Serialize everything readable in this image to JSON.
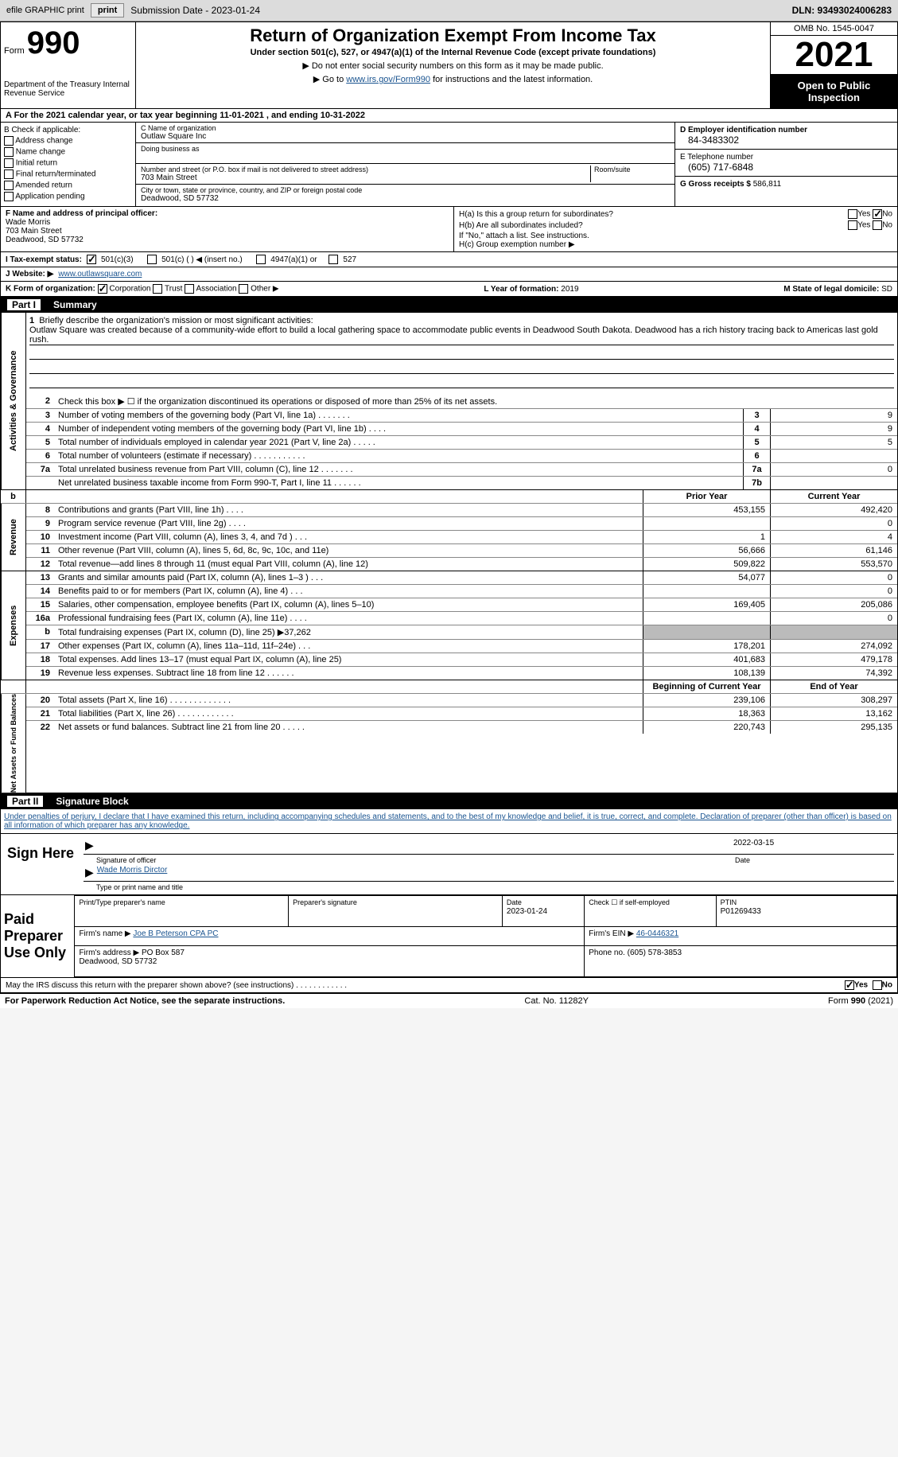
{
  "topbar": {
    "efile": "efile GRAPHIC print",
    "sub_label": "Submission Date - 2023-01-24",
    "dln": "DLN: 93493024006283"
  },
  "header": {
    "form_label": "Form",
    "form_num": "990",
    "dept": "Department of the Treasury Internal Revenue Service",
    "title": "Return of Organization Exempt From Income Tax",
    "subtitle": "Under section 501(c), 527, or 4947(a)(1) of the Internal Revenue Code (except private foundations)",
    "note1": "▶ Do not enter social security numbers on this form as it may be made public.",
    "note2_pre": "▶ Go to ",
    "note2_link": "www.irs.gov/Form990",
    "note2_post": " for instructions and the latest information.",
    "omb": "OMB No. 1545-0047",
    "year": "2021",
    "open": "Open to Public Inspection"
  },
  "row_a": "A For the 2021 calendar year, or tax year beginning 11-01-2021   , and ending 10-31-2022",
  "colB": {
    "label": "B Check if applicable:",
    "items": [
      "Address change",
      "Name change",
      "Initial return",
      "Final return/terminated",
      "Amended return",
      "Application pending"
    ]
  },
  "colC": {
    "name_lbl": "C Name of organization",
    "name": "Outlaw Square Inc",
    "dba_lbl": "Doing business as",
    "addr_lbl": "Number and street (or P.O. box if mail is not delivered to street address)",
    "room_lbl": "Room/suite",
    "addr": "703 Main Street",
    "city_lbl": "City or town, state or province, country, and ZIP or foreign postal code",
    "city": "Deadwood, SD  57732"
  },
  "colD": {
    "ein_lbl": "D Employer identification number",
    "ein": "84-3483302",
    "phone_lbl": "E Telephone number",
    "phone": "(605) 717-6848",
    "gross_lbl": "G Gross receipts $",
    "gross": "586,811"
  },
  "secF": {
    "lbl": "F  Name and address of principal officer:",
    "name": "Wade Morris",
    "addr1": "703 Main Street",
    "addr2": "Deadwood, SD  57732"
  },
  "secH": {
    "ha_lbl": "H(a)  Is this a group return for subordinates?",
    "hb_lbl": "H(b)  Are all subordinates included?",
    "hb_note": "If \"No,\" attach a list. See instructions.",
    "hc_lbl": "H(c)  Group exemption number ▶",
    "yes": "Yes",
    "no": "No"
  },
  "secI": {
    "lbl": "I   Tax-exempt status:",
    "o1": "501(c)(3)",
    "o2": "501(c) (   ) ◀ (insert no.)",
    "o3": "4947(a)(1) or",
    "o4": "527"
  },
  "secJ": {
    "lbl": "J   Website: ▶",
    "val": "www.outlawsquare.com"
  },
  "secK": {
    "lbl": "K Form of organization:",
    "o1": "Corporation",
    "o2": "Trust",
    "o3": "Association",
    "o4": "Other ▶"
  },
  "secL": {
    "lbl": "L Year of formation:",
    "val": "2019"
  },
  "secM": {
    "lbl": "M State of legal domicile:",
    "val": "SD"
  },
  "part1": {
    "label": "Part I",
    "title": "Summary"
  },
  "mission": {
    "num": "1",
    "lbl": "Briefly describe the organization's mission or most significant activities:",
    "text": "Outlaw Square was created because of a community-wide effort to build a local gathering space to accommodate public events in Deadwood South Dakota. Deadwood has a rich history tracing back to Americas last gold rush."
  },
  "line2": "Check this box ▶ ☐ if the organization discontinued its operations or disposed of more than 25% of its net assets.",
  "sidelabels": {
    "act": "Activities & Governance",
    "rev": "Revenue",
    "exp": "Expenses",
    "net": "Net Assets or Fund Balances"
  },
  "govrows": [
    {
      "n": "3",
      "d": "Number of voting members of the governing body (Part VI, line 1a)   .    .    .    .    .    .    .",
      "b": "3",
      "v": "9"
    },
    {
      "n": "4",
      "d": "Number of independent voting members of the governing body (Part VI, line 1b)  .    .    .    .",
      "b": "4",
      "v": "9"
    },
    {
      "n": "5",
      "d": "Total number of individuals employed in calendar year 2021 (Part V, line 2a)  .    .    .    .    .",
      "b": "5",
      "v": "5"
    },
    {
      "n": "6",
      "d": "Total number of volunteers (estimate if necessary)    .    .    .    .    .    .    .    .    .    .    .",
      "b": "6",
      "v": ""
    },
    {
      "n": "7a",
      "d": "Total unrelated business revenue from Part VIII, column (C), line 12   .    .    .    .    .    .    .",
      "b": "7a",
      "v": "0"
    },
    {
      "n": "",
      "d": "Net unrelated business taxable income from Form 990-T, Part I, line 11  .    .    .    .    .    .",
      "b": "7b",
      "v": ""
    }
  ],
  "colheads": {
    "prior": "Prior Year",
    "curr": "Current Year",
    "beg": "Beginning of Current Year",
    "end": "End of Year"
  },
  "revrows": [
    {
      "n": "8",
      "d": "Contributions and grants (Part VIII, line 1h)  .    .    .    .",
      "p": "453,155",
      "c": "492,420"
    },
    {
      "n": "9",
      "d": "Program service revenue (Part VIII, line 2g)  .    .    .    .",
      "p": "",
      "c": "0"
    },
    {
      "n": "10",
      "d": "Investment income (Part VIII, column (A), lines 3, 4, and 7d )    .    .    .",
      "p": "1",
      "c": "4"
    },
    {
      "n": "11",
      "d": "Other revenue (Part VIII, column (A), lines 5, 6d, 8c, 9c, 10c, and 11e)",
      "p": "56,666",
      "c": "61,146"
    },
    {
      "n": "12",
      "d": "Total revenue—add lines 8 through 11 (must equal Part VIII, column (A), line 12)",
      "p": "509,822",
      "c": "553,570"
    }
  ],
  "exprows": [
    {
      "n": "13",
      "d": "Grants and similar amounts paid (Part IX, column (A), lines 1–3 )   .    .    .",
      "p": "54,077",
      "c": "0"
    },
    {
      "n": "14",
      "d": "Benefits paid to or for members (Part IX, column (A), line 4)  .    .    .",
      "p": "",
      "c": "0"
    },
    {
      "n": "15",
      "d": "Salaries, other compensation, employee benefits (Part IX, column (A), lines 5–10)",
      "p": "169,405",
      "c": "205,086"
    },
    {
      "n": "16a",
      "d": "Professional fundraising fees (Part IX, column (A), line 11e)    .    .    .    .",
      "p": "",
      "c": "0"
    },
    {
      "n": "b",
      "d": "Total fundraising expenses (Part IX, column (D), line 25) ▶37,262",
      "p": "shade",
      "c": "shade"
    },
    {
      "n": "17",
      "d": "Other expenses (Part IX, column (A), lines 11a–11d, 11f–24e)    .    .    .",
      "p": "178,201",
      "c": "274,092"
    },
    {
      "n": "18",
      "d": "Total expenses. Add lines 13–17 (must equal Part IX, column (A), line 25)",
      "p": "401,683",
      "c": "479,178"
    },
    {
      "n": "19",
      "d": "Revenue less expenses. Subtract line 18 from line 12  .    .    .    .    .    .",
      "p": "108,139",
      "c": "74,392"
    }
  ],
  "netrows": [
    {
      "n": "20",
      "d": "Total assets (Part X, line 16)  .    .    .    .    .    .    .    .    .    .    .    .    .",
      "p": "239,106",
      "c": "308,297"
    },
    {
      "n": "21",
      "d": "Total liabilities (Part X, line 26)   .    .    .    .    .    .    .    .    .    .    .    .",
      "p": "18,363",
      "c": "13,162"
    },
    {
      "n": "22",
      "d": "Net assets or fund balances. Subtract line 21 from line 20  .    .    .    .    .",
      "p": "220,743",
      "c": "295,135"
    }
  ],
  "part2": {
    "label": "Part II",
    "title": "Signature Block"
  },
  "penalty": "Under penalties of perjury, I declare that I have examined this return, including accompanying schedules and statements, and to the best of my knowledge and belief, it is true, correct, and complete. Declaration of preparer (other than officer) is based on all information of which preparer has any knowledge.",
  "sign": {
    "lbl": "Sign Here",
    "sig_lbl": "Signature of officer",
    "date": "2022-03-15",
    "date_lbl": "Date",
    "name": "Wade Morris Dirctor",
    "name_lbl": "Type or print name and title"
  },
  "prep": {
    "lbl": "Paid Preparer Use Only",
    "print_lbl": "Print/Type preparer's name",
    "sig_lbl": "Preparer's signature",
    "date_lbl": "Date",
    "date": "2023-01-24",
    "check_lbl": "Check ☐ if self-employed",
    "ptin_lbl": "PTIN",
    "ptin": "P01269433",
    "firm_lbl": "Firm's name    ▶",
    "firm": "Joe B Peterson CPA PC",
    "ein_lbl": "Firm's EIN ▶",
    "ein": "46-0446321",
    "addr_lbl": "Firm's address ▶",
    "addr": "PO Box 587\nDeadwood, SD  57732",
    "phone_lbl": "Phone no.",
    "phone": "(605) 578-3853"
  },
  "discuss": "May the IRS discuss this return with the preparer shown above? (see instructions)   .    .    .    .    .    .    .    .    .    .    .    .",
  "footer": {
    "left": "For Paperwork Reduction Act Notice, see the separate instructions.",
    "mid": "Cat. No. 11282Y",
    "right": "Form 990 (2021)"
  }
}
